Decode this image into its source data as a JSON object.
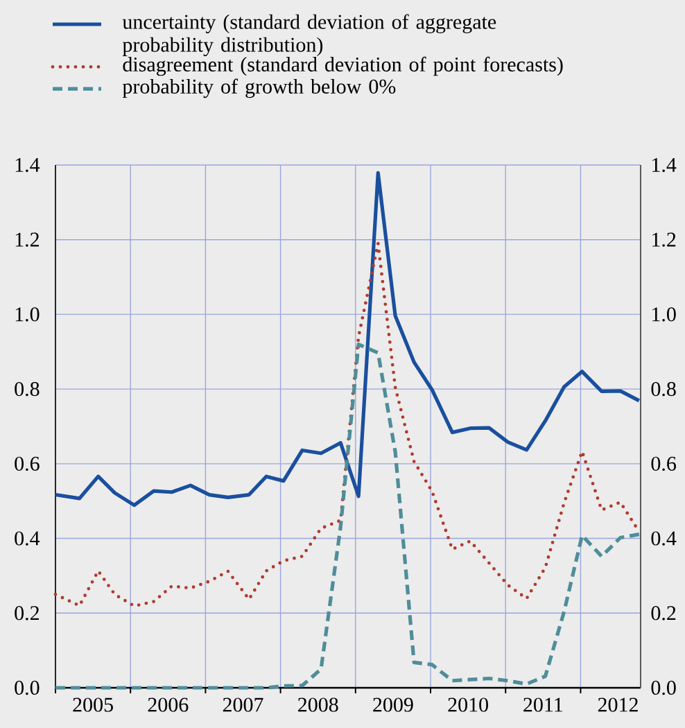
{
  "chart_data": {
    "type": "line",
    "x": [
      2005.0,
      2005.32,
      2005.57,
      2005.79,
      2006.05,
      2006.31,
      2006.55,
      2006.8,
      2007.05,
      2007.3,
      2007.58,
      2007.81,
      2008.04,
      2008.29,
      2008.54,
      2008.8,
      2009.04,
      2009.3,
      2009.53,
      2009.78,
      2010.02,
      2010.29,
      2010.53,
      2010.78,
      2011.03,
      2011.28,
      2011.53,
      2011.78,
      2012.02,
      2012.28,
      2012.53,
      2012.78
    ],
    "series": [
      {
        "name": "uncertainty (standard deviation of aggregate probability distribution)",
        "color": "#1a4f9e",
        "line_style": "solid",
        "values": [
          0.517,
          0.507,
          0.566,
          0.522,
          0.489,
          0.527,
          0.524,
          0.542,
          0.517,
          0.51,
          0.517,
          0.566,
          0.554,
          0.636,
          0.628,
          0.656,
          0.513,
          1.379,
          0.996,
          0.872,
          0.798,
          0.684,
          0.695,
          0.696,
          0.658,
          0.637,
          0.715,
          0.806,
          0.847,
          0.794,
          0.795,
          0.769
        ]
      },
      {
        "name": "disagreement (standard deviation of point forecasts)",
        "color": "#b03a2e",
        "line_style": "dotted",
        "values": [
          0.25,
          0.22,
          0.313,
          0.25,
          0.219,
          0.231,
          0.272,
          0.267,
          0.285,
          0.312,
          0.237,
          0.313,
          0.34,
          0.352,
          0.427,
          0.448,
          0.94,
          1.19,
          0.804,
          0.606,
          0.526,
          0.371,
          0.393,
          0.334,
          0.275,
          0.239,
          0.322,
          0.495,
          0.633,
          0.476,
          0.497,
          0.418
        ]
      },
      {
        "name": "probability of growth below 0%",
        "color": "#4f8d99",
        "line_style": "dashed",
        "values": [
          0.0,
          0.0,
          0.0,
          0.0,
          0.0,
          0.0,
          0.0,
          0.0,
          0.0,
          0.0,
          0.0,
          0.0,
          0.005,
          0.006,
          0.05,
          0.43,
          0.92,
          0.897,
          0.631,
          0.068,
          0.062,
          0.019,
          0.022,
          0.025,
          0.019,
          0.01,
          0.031,
          0.204,
          0.408,
          0.352,
          0.402,
          0.411
        ]
      }
    ],
    "xlim": [
      2005,
      2012.8
    ],
    "xticks": [
      {
        "value": 2005,
        "label": null
      },
      {
        "value": 2006,
        "label": null
      },
      {
        "value": 2007,
        "label": null
      },
      {
        "value": 2008,
        "label": null
      },
      {
        "value": 2009,
        "label": null
      },
      {
        "value": 2010,
        "label": null
      },
      {
        "value": 2011,
        "label": null
      },
      {
        "value": 2012,
        "label": null
      },
      {
        "value": 2005.5,
        "label": "2005"
      },
      {
        "value": 2006.5,
        "label": "2006"
      },
      {
        "value": 2007.5,
        "label": "2007"
      },
      {
        "value": 2008.5,
        "label": "2008"
      },
      {
        "value": 2009.5,
        "label": "2009"
      },
      {
        "value": 2010.5,
        "label": "2010"
      },
      {
        "value": 2011.5,
        "label": "2011"
      },
      {
        "value": 2012.5,
        "label": "2012"
      }
    ],
    "ylim": [
      0,
      1.4
    ],
    "yticks": [
      {
        "value": 0,
        "label": "0.0"
      },
      {
        "value": 0.2,
        "label": "0.2"
      },
      {
        "value": 0.4,
        "label": "0.4"
      },
      {
        "value": 0.6,
        "label": "0.6"
      },
      {
        "value": 0.8,
        "label": "0.8"
      },
      {
        "value": 1.0,
        "label": "1.0"
      },
      {
        "value": 1.2,
        "label": "1.2"
      },
      {
        "value": 1.4,
        "label": "1.4"
      }
    ],
    "y2lim": [
      0,
      1.4
    ],
    "y2ticks": [
      {
        "value": 0,
        "label": "0.0"
      },
      {
        "value": 0.2,
        "label": "0.2"
      },
      {
        "value": 0.4,
        "label": "0.4"
      },
      {
        "value": 0.6,
        "label": "0.6"
      },
      {
        "value": 0.8,
        "label": "0.8"
      },
      {
        "value": 1.0,
        "label": "1.0"
      },
      {
        "value": 1.2,
        "label": "1.2"
      },
      {
        "value": 1.4,
        "label": "1.4"
      }
    ],
    "grid": true,
    "legend": "top",
    "marker": "none"
  }
}
